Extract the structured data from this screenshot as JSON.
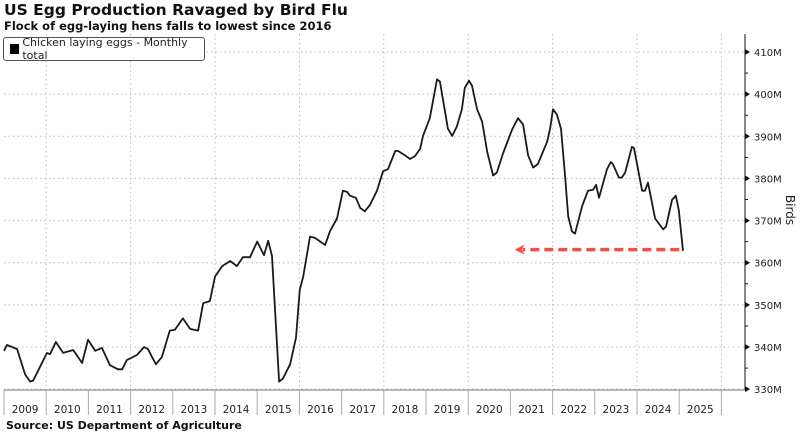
{
  "chart_data": {
    "type": "line",
    "title": "US Egg Production Ravaged by Bird Flu",
    "subtitle": "Flock of egg-laying hens falls to lowest since 2016",
    "source": "Source: US Department of Agriculture",
    "ylabel": "Birds",
    "xlabel": "",
    "ylim": [
      330,
      410
    ],
    "xlim": [
      2009,
      2026
    ],
    "y_ticks": [
      330,
      340,
      350,
      360,
      370,
      380,
      390,
      400,
      410
    ],
    "y_tick_labels": [
      "330M",
      "340M",
      "350M",
      "360M",
      "370M",
      "380M",
      "390M",
      "400M",
      "410M"
    ],
    "x_tick_labels": [
      "2009",
      "2010",
      "2011",
      "2012",
      "2013",
      "2014",
      "2015",
      "2016",
      "2017",
      "2018",
      "2019",
      "2020",
      "2021",
      "2022",
      "2023",
      "2024",
      "2025"
    ],
    "grid": true,
    "legend": {
      "placement": "top-left",
      "entries": [
        "Chicken laying eggs - Monthly total"
      ]
    },
    "colors": {
      "line": "#1a1a1a",
      "arrow": "#f0504a",
      "grid": "#bbbbbb"
    },
    "annotation": {
      "type": "dashed-arrow",
      "value": 363,
      "from_x": 2025.05,
      "to_x": 2021.1
    },
    "series": [
      {
        "name": "Chicken laying eggs - Monthly total",
        "unit": "millions of birds",
        "x": [
          2009.0,
          2009.07,
          2009.31,
          2009.5,
          2009.62,
          2009.69,
          2010.02,
          2010.09,
          2010.23,
          2010.4,
          2010.64,
          2010.85,
          2010.99,
          2011.16,
          2011.32,
          2011.51,
          2011.7,
          2011.8,
          2011.91,
          2012.15,
          2012.32,
          2012.41,
          2012.6,
          2012.74,
          2012.93,
          2013.05,
          2013.24,
          2013.41,
          2013.6,
          2013.72,
          2013.88,
          2014.0,
          2014.17,
          2014.36,
          2014.52,
          2014.66,
          2014.83,
          2015.0,
          2015.16,
          2015.26,
          2015.35,
          2015.52,
          2015.61,
          2015.78,
          2015.92,
          2016.01,
          2016.09,
          2016.25,
          2016.37,
          2016.61,
          2016.73,
          2016.89,
          2017.03,
          2017.13,
          2017.2,
          2017.34,
          2017.44,
          2017.55,
          2017.67,
          2017.84,
          2017.98,
          2018.1,
          2018.27,
          2018.34,
          2018.5,
          2018.62,
          2018.74,
          2018.86,
          2018.93,
          2019.09,
          2019.26,
          2019.33,
          2019.52,
          2019.62,
          2019.73,
          2019.85,
          2019.92,
          2020.02,
          2020.09,
          2020.21,
          2020.33,
          2020.45,
          2020.59,
          2020.68,
          2020.82,
          2021.04,
          2021.18,
          2021.3,
          2021.42,
          2021.54,
          2021.65,
          2021.87,
          2021.94,
          2022.01,
          2022.1,
          2022.2,
          2022.29,
          2022.37,
          2022.46,
          2022.53,
          2022.7,
          2022.84,
          2022.96,
          2023.03,
          2023.1,
          2023.29,
          2023.38,
          2023.43,
          2023.57,
          2023.64,
          2023.72,
          2023.88,
          2023.93,
          2024.12,
          2024.19,
          2024.26,
          2024.43,
          2024.62,
          2024.69,
          2024.83,
          2024.92,
          2024.99,
          2025.09
        ],
        "values": [
          339.1,
          340.5,
          339.5,
          333.5,
          331.8,
          332.0,
          338.6,
          338.3,
          341.2,
          338.6,
          339.3,
          336.2,
          341.7,
          339.1,
          339.8,
          335.7,
          334.7,
          334.7,
          336.9,
          338.1,
          340.0,
          339.5,
          335.9,
          337.6,
          343.9,
          344.1,
          346.8,
          344.3,
          343.9,
          350.4,
          350.9,
          356.7,
          359.2,
          360.4,
          359.2,
          361.3,
          361.3,
          365.0,
          361.8,
          365.2,
          361.6,
          331.8,
          332.5,
          335.9,
          342.2,
          353.6,
          356.7,
          366.2,
          365.9,
          364.2,
          367.6,
          370.5,
          377.1,
          376.8,
          375.9,
          375.4,
          373.0,
          372.2,
          373.7,
          377.1,
          381.7,
          382.2,
          386.5,
          386.5,
          385.5,
          384.6,
          385.3,
          387.0,
          390.1,
          394.3,
          403.5,
          403.0,
          391.8,
          390.1,
          392.3,
          396.4,
          401.5,
          403.2,
          402.0,
          396.4,
          393.5,
          386.3,
          380.7,
          381.4,
          385.8,
          391.6,
          394.3,
          392.8,
          385.5,
          382.6,
          383.4,
          388.7,
          391.8,
          396.4,
          395.2,
          391.8,
          381.4,
          371.0,
          367.4,
          366.9,
          373.4,
          377.1,
          377.3,
          378.5,
          375.4,
          382.2,
          383.9,
          383.4,
          380.2,
          380.2,
          381.4,
          387.5,
          387.2,
          377.1,
          377.1,
          379.0,
          370.5,
          367.9,
          368.6,
          374.9,
          375.9,
          372.5,
          362.8
        ]
      }
    ]
  }
}
